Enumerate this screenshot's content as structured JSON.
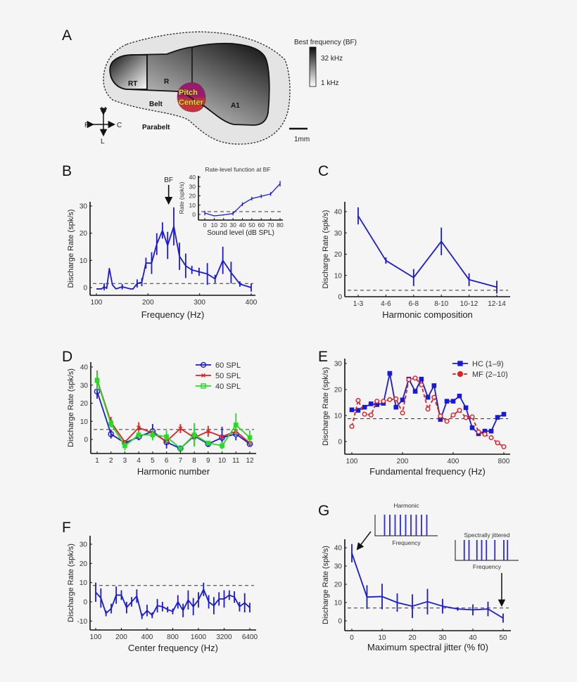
{
  "panel_letters": [
    "A",
    "B",
    "C",
    "D",
    "E",
    "F",
    "G"
  ],
  "map": {
    "regions": [
      "RT",
      "R",
      "A1"
    ],
    "belt": "Belt",
    "parabelt": "Parabelt",
    "pitch_center": [
      "Pitch",
      "Center"
    ],
    "compass": {
      "up": "M",
      "down": "L",
      "left": "R",
      "right": "C"
    },
    "colorbar_title": "Best frequency (BF)",
    "colorbar_max": "32 kHz",
    "colorbar_min": "1 kHz",
    "scale_bar": "1mm",
    "colors": {
      "pitch_top": "#9b1a6b",
      "pitch_bottom": "#c9323c",
      "text": "#f2e41c"
    }
  },
  "chart_data": [
    {
      "id": "B",
      "type": "line",
      "xlabel": "Frequency (Hz)",
      "ylabel": "Discharge Rate (spk/s)",
      "xlim": [
        95,
        410
      ],
      "ylim": [
        -3,
        31.5
      ],
      "xticks": [
        100,
        200,
        300,
        400
      ],
      "yticks": [
        0,
        10,
        20,
        30
      ],
      "baseline": 1.5,
      "annotation": "BF",
      "annotation_x": 240,
      "x": [
        100,
        110,
        115,
        120,
        125,
        131,
        138,
        150,
        166,
        171,
        179,
        188,
        196,
        207,
        217,
        228,
        238,
        250,
        261,
        273,
        285,
        299,
        315,
        330,
        345,
        361,
        378,
        400
      ],
      "series": [
        {
          "color": "#1a1ad6",
          "values": [
            -0.5,
            -0.5,
            0.3,
            -0.3,
            7,
            1,
            -0.5,
            0.3,
            -0.5,
            -0.5,
            1.5,
            2,
            9,
            9,
            16,
            21,
            15.5,
            22.5,
            11.5,
            8,
            6.5,
            5.8,
            5,
            3.2,
            10,
            5.5,
            1.3,
            0
          ],
          "errors": [
            0,
            0,
            1.3,
            0,
            0,
            0,
            0,
            1,
            0,
            0,
            1.5,
            1.5,
            2,
            4,
            4,
            3,
            5,
            7,
            5,
            4.5,
            1.5,
            1.5,
            4,
            1.5,
            5,
            4,
            1,
            1.5
          ]
        }
      ]
    },
    {
      "id": "B-inset",
      "type": "line",
      "title": "Rate-level function at BF",
      "xlabel": "Sound level (dB SPL)",
      "ylabel": "Rate (spk/s)",
      "xlim": [
        -5,
        82
      ],
      "ylim": [
        -5,
        40
      ],
      "xticks": [
        0,
        10,
        20,
        30,
        40,
        50,
        60,
        70,
        80
      ],
      "yticks": [
        0,
        10,
        20,
        30,
        40
      ],
      "baseline": 3,
      "x": [
        0,
        10,
        20,
        30,
        40,
        50,
        60,
        70,
        80
      ],
      "series": [
        {
          "color": "#1a1ad6",
          "values": [
            1.5,
            -1.5,
            -0.5,
            1,
            11,
            17,
            19.5,
            22,
            33
          ],
          "errors": [
            2.5,
            0.5,
            0.5,
            2,
            2,
            2,
            2,
            2,
            3
          ]
        }
      ]
    },
    {
      "id": "C",
      "type": "line",
      "xlabel": "Harmonic composition",
      "ylabel": "Discharge Rate (spk/s)",
      "categories": [
        "1-3",
        "4-6",
        "6-8",
        "8-10",
        "10-12",
        "12-14"
      ],
      "ylim": [
        0,
        45
      ],
      "yticks": [
        0,
        10,
        20,
        30,
        40
      ],
      "baseline": 3,
      "series": [
        {
          "color": "#1a1ad6",
          "values": [
            38,
            17,
            9,
            26,
            8,
            4.5
          ],
          "errors": [
            4,
            1.5,
            4,
            6.5,
            3,
            3
          ]
        }
      ]
    },
    {
      "id": "D",
      "type": "line",
      "xlabel": "Harmonic number",
      "ylabel": "Discharge Rate (spk/s)",
      "xlim": [
        0.5,
        12.5
      ],
      "ylim": [
        -8,
        42
      ],
      "xticks": [
        1,
        2,
        3,
        4,
        5,
        6,
        7,
        8,
        9,
        10,
        11,
        12
      ],
      "yticks": [
        0,
        10,
        20,
        30,
        40
      ],
      "baseline": 5.5,
      "legend": "top-right",
      "x": [
        1,
        2,
        3,
        4,
        5,
        6,
        7,
        8,
        9,
        10,
        11,
        12
      ],
      "series": [
        {
          "name": "60 SPL",
          "color": "#1a1ad6",
          "marker": "circle",
          "dash": false,
          "values": [
            26.5,
            3,
            -2,
            1.5,
            4.5,
            -1.5,
            -5,
            2,
            -2.5,
            1,
            3,
            -2.5
          ],
          "errors": [
            4,
            2.5,
            1,
            2,
            4,
            3.5,
            1,
            3,
            1.5,
            6,
            3.5,
            1
          ]
        },
        {
          "name": "50 SPL",
          "color": "#e02020",
          "marker": "x",
          "dash": false,
          "values": [
            33,
            9.5,
            -1.5,
            6.5,
            3.5,
            -1,
            6,
            1,
            4.5,
            1.5,
            4.5,
            -2
          ],
          "errors": [
            5,
            3,
            1,
            3,
            1.5,
            1,
            2.5,
            4.5,
            3,
            1,
            2,
            1
          ]
        },
        {
          "name": "40 SPL",
          "color": "#22dd22",
          "marker": "square",
          "dash": false,
          "values": [
            32.5,
            8.5,
            -3.5,
            2.5,
            2.5,
            1.5,
            -5,
            2.5,
            -2,
            -3.5,
            8,
            1
          ],
          "errors": [
            5,
            2,
            2.5,
            2,
            3,
            3.5,
            1,
            6.5,
            1,
            2,
            6.5,
            4
          ]
        }
      ]
    },
    {
      "id": "E",
      "type": "line",
      "xscale": "log2",
      "xlabel": "Fundamental frequency (Hz)",
      "ylabel": "Discharge Rate (spk/s)",
      "xlim": [
        95,
        840
      ],
      "ylim": [
        -5,
        32
      ],
      "xticks": [
        100,
        200,
        400,
        800
      ],
      "yticks": [
        0,
        10,
        20,
        30
      ],
      "baseline": 8.8,
      "legend": "top-right",
      "x": [
        100,
        109,
        119,
        130,
        141,
        154,
        168,
        183,
        200,
        218,
        238,
        259,
        283,
        308,
        336,
        367,
        400,
        436,
        476,
        519,
        566,
        617,
        673,
        734,
        800
      ],
      "series": [
        {
          "name": "HC (1–9)",
          "color": "#1a1ad6",
          "marker": "square",
          "dash": false,
          "values": [
            12.2,
            12,
            13.2,
            14.5,
            14.2,
            14.7,
            26.2,
            13.2,
            16,
            24,
            19.3,
            24,
            17,
            21.5,
            8.5,
            15.5,
            15.5,
            17.5,
            13,
            5.3,
            3,
            4,
            4,
            9.3,
            10.5
          ]
        },
        {
          "name": "MF (2–10)",
          "color": "#e02020",
          "marker": "circle",
          "dash": true,
          "values": [
            5.8,
            15.8,
            10.5,
            10.2,
            15.5,
            15.5,
            16.1,
            16.4,
            11,
            23.8,
            24.4,
            21.8,
            12.5,
            17,
            9.8,
            7.8,
            10.2,
            12,
            9.2,
            9.5,
            3.7,
            2.8,
            1.5,
            -0.5,
            -2
          ]
        }
      ]
    },
    {
      "id": "F",
      "type": "line",
      "xscale": "log2",
      "xlabel": "Center frequency (Hz)",
      "ylabel": "Discharge Rate (spk/s)",
      "xlim": [
        95,
        6600
      ],
      "ylim": [
        -15,
        35
      ],
      "xticks": [
        100,
        200,
        400,
        800,
        1600,
        3200,
        6400
      ],
      "yticks": [
        -10,
        0,
        10,
        20,
        30
      ],
      "baseline": 8.5,
      "x": [
        100,
        115,
        132,
        152,
        174,
        200,
        230,
        264,
        303,
        348,
        400,
        459,
        528,
        606,
        696,
        800,
        919,
        1056,
        1213,
        1393,
        1600,
        1838,
        2111,
        2425,
        2786,
        3200,
        3676,
        4222,
        4850,
        5572,
        6400
      ],
      "series": [
        {
          "color": "#1a1ad6",
          "values": [
            5,
            2,
            -6,
            -3.5,
            3.5,
            3.5,
            -3,
            0,
            3,
            -7.5,
            -4.5,
            -7,
            -2,
            -2.5,
            -4,
            -5,
            0,
            -4.5,
            1,
            -2.5,
            1,
            6.5,
            0,
            -2,
            1.5,
            1.5,
            3.5,
            2.5,
            -2.5,
            -0.5,
            -3
          ],
          "errors": [
            5,
            5,
            1.5,
            2.5,
            4.5,
            2.5,
            3,
            2.5,
            3.5,
            1.5,
            3,
            1.5,
            3.5,
            2.5,
            1.5,
            1.5,
            3.5,
            3.5,
            5,
            4.5,
            4,
            3.5,
            3.5,
            4.5,
            3.5,
            4.5,
            2.5,
            3,
            2.5,
            5,
            2.5
          ]
        }
      ]
    },
    {
      "id": "G",
      "type": "line",
      "xlabel": "Maximum spectral jitter (% f0)",
      "ylabel": "Discharge Rate (spk/s)",
      "xlim": [
        -3,
        53
      ],
      "ylim": [
        -5,
        45
      ],
      "xticks": [
        0,
        10,
        20,
        30,
        40,
        50
      ],
      "yticks": [
        0,
        10,
        20,
        30,
        40
      ],
      "baseline": 7,
      "x": [
        0,
        5,
        10,
        15,
        20,
        25,
        30,
        35,
        40,
        45,
        50
      ],
      "series": [
        {
          "color": "#1a1ad6",
          "values": [
            37,
            13,
            13.3,
            10,
            8,
            10.5,
            8,
            6.5,
            6,
            6.5,
            1.5
          ],
          "errors": [
            5,
            6.5,
            7,
            5,
            6.5,
            7,
            4,
            1,
            3,
            4,
            2.5
          ]
        }
      ],
      "insets": [
        {
          "title": "Harmonic",
          "xlabel": "Frequency",
          "components": [
            1,
            2,
            3,
            4,
            5,
            6,
            7,
            8,
            9
          ]
        },
        {
          "title": "Spectrally jittered",
          "xlabel": "Frequency",
          "components": [
            0.9,
            1.8,
            3.3,
            4.2,
            5.1,
            6.7,
            8.4,
            9.1
          ]
        }
      ]
    }
  ]
}
